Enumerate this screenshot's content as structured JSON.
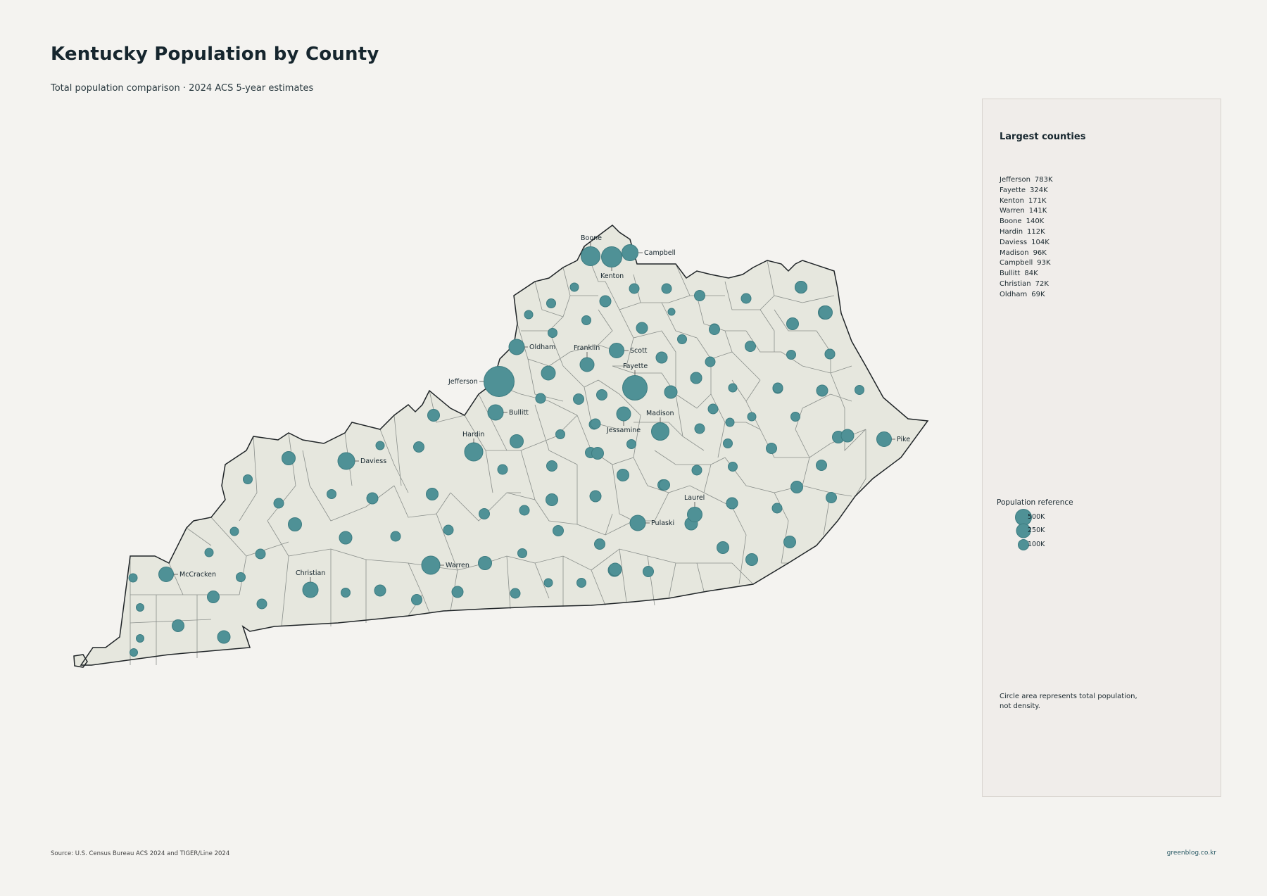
{
  "header": {
    "title": "Kentucky Population by County",
    "subtitle": "Total population comparison · 2024 ACS 5-year estimates"
  },
  "colors": {
    "bubble": "#4f9196",
    "county_fill": "#e6e7de",
    "county_stroke": "#8a8f8b",
    "background": "#f4f3f0"
  },
  "panel": {
    "title": "Largest counties",
    "ranking": [
      {
        "county": "Jefferson",
        "value": "783K"
      },
      {
        "county": "Fayette",
        "value": "324K"
      },
      {
        "county": "Kenton",
        "value": "171K"
      },
      {
        "county": "Warren",
        "value": "141K"
      },
      {
        "county": "Boone",
        "value": "140K"
      },
      {
        "county": "Hardin",
        "value": "112K"
      },
      {
        "county": "Daviess",
        "value": "104K"
      },
      {
        "county": "Madison",
        "value": "96K"
      },
      {
        "county": "Campbell",
        "value": "93K"
      },
      {
        "county": "Bullitt",
        "value": "84K"
      },
      {
        "county": "Christian",
        "value": "72K"
      },
      {
        "county": "Oldham",
        "value": "69K"
      }
    ],
    "reference": {
      "title": "Population reference",
      "items": [
        "500K",
        "250K",
        "100K"
      ]
    },
    "note": "Circle area represents total population, not density."
  },
  "map": {
    "labeled_counties": [
      "Boone",
      "Campbell",
      "Kenton",
      "Oldham",
      "Franklin",
      "Scott",
      "Fayette",
      "Jefferson",
      "Bullitt",
      "Madison",
      "Jessamine",
      "Hardin",
      "Daviess",
      "Pike",
      "Laurel",
      "Pulaski",
      "Warren",
      "Christian",
      "McCracken"
    ]
  },
  "footer": {
    "source": "Source: U.S. Census Bureau ACS 2024 and TIGER/Line 2024",
    "brand": "greenblog.co.kr"
  }
}
